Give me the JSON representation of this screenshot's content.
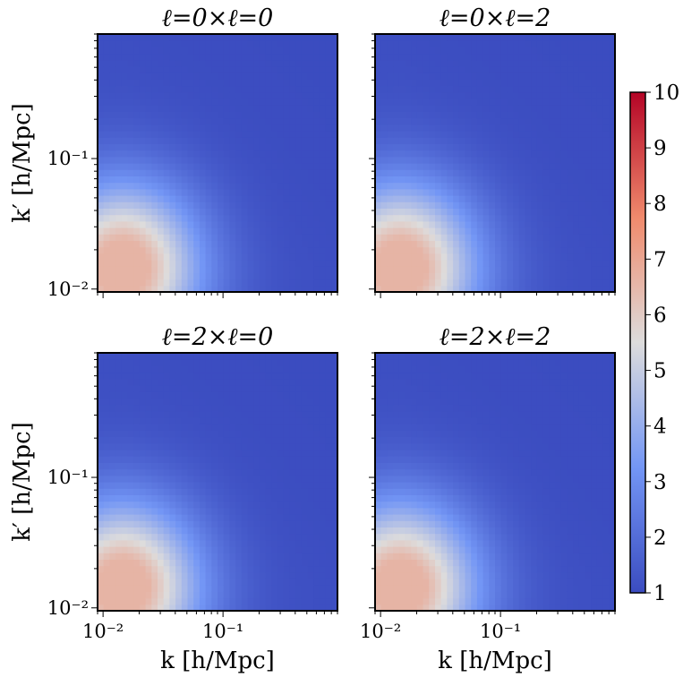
{
  "figure": {
    "colorbar": {
      "min": 1,
      "max": 10,
      "ticks": [
        "1",
        "2",
        "3",
        "4",
        "5",
        "6",
        "7",
        "8",
        "9",
        "10"
      ],
      "colormap": "coolwarm",
      "colors": {
        "low": "#3b4cc0",
        "lowmid": "#7396f5",
        "mid": "#dddcdc",
        "highmid": "#f08a6c",
        "high": "#b40426"
      }
    }
  },
  "chart_data": [
    {
      "type": "heatmap",
      "title": "ℓ=0×ℓ=0",
      "xlabel": "",
      "ylabel": "k′ [h/Mpc]",
      "xscale": "log",
      "yscale": "log",
      "xlim": [
        0.009,
        0.9
      ],
      "ylim": [
        0.0095,
        0.9
      ],
      "xticks": [],
      "yticks": [
        {
          "value": 0.01,
          "label": "10⁻²"
        },
        {
          "value": 0.1,
          "label": "10⁻¹"
        }
      ],
      "peak": {
        "x": 0.015,
        "y": 0.015,
        "value": 6.6
      }
    },
    {
      "type": "heatmap",
      "title": "ℓ=0×ℓ=2",
      "xlabel": "",
      "ylabel": "",
      "xscale": "log",
      "yscale": "log",
      "xlim": [
        0.009,
        0.9
      ],
      "ylim": [
        0.0095,
        0.9
      ],
      "xticks": [],
      "yticks": [],
      "peak": {
        "x": 0.015,
        "y": 0.015,
        "value": 6.6
      }
    },
    {
      "type": "heatmap",
      "title": "ℓ=2×ℓ=0",
      "xlabel": "k [h/Mpc]",
      "ylabel": "k′ [h/Mpc]",
      "xscale": "log",
      "yscale": "log",
      "xlim": [
        0.009,
        0.9
      ],
      "ylim": [
        0.0095,
        0.9
      ],
      "xticks": [
        {
          "value": 0.01,
          "label": "10⁻²"
        },
        {
          "value": 0.1,
          "label": "10⁻¹"
        }
      ],
      "yticks": [
        {
          "value": 0.01,
          "label": "10⁻²"
        },
        {
          "value": 0.1,
          "label": "10⁻¹"
        }
      ],
      "peak": {
        "x": 0.015,
        "y": 0.015,
        "value": 6.6
      }
    },
    {
      "type": "heatmap",
      "title": "ℓ=2×ℓ=2",
      "xlabel": "k [h/Mpc]",
      "ylabel": "",
      "xscale": "log",
      "yscale": "log",
      "xlim": [
        0.009,
        0.9
      ],
      "ylim": [
        0.0095,
        0.9
      ],
      "xticks": [
        {
          "value": 0.01,
          "label": "10⁻²"
        },
        {
          "value": 0.1,
          "label": "10⁻¹"
        }
      ],
      "yticks": [],
      "peak": {
        "x": 0.015,
        "y": 0.015,
        "value": 6.6
      }
    }
  ]
}
